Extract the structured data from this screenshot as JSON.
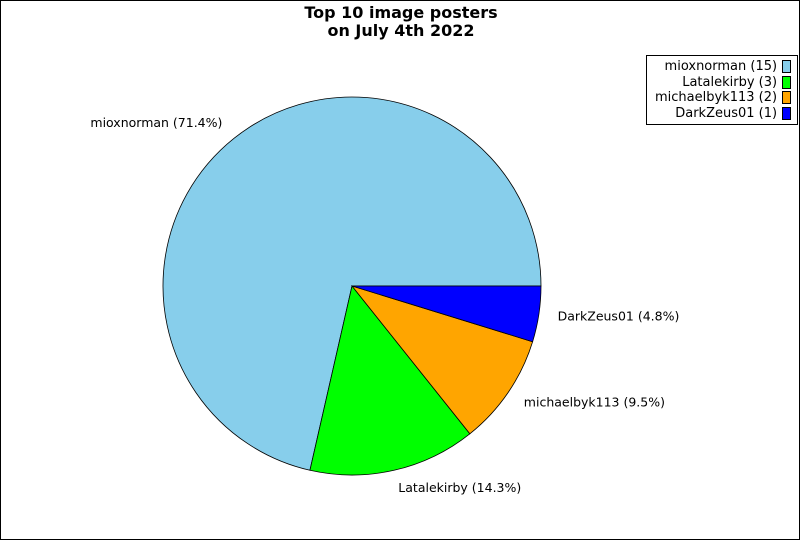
{
  "chart_data": {
    "type": "pie",
    "title": "Top 10 image posters\non July 4th 2022",
    "slices": [
      {
        "label": "mioxnorman",
        "value": 15,
        "percent": "71.4%",
        "color": "#87ceeb"
      },
      {
        "label": "Latalekirby",
        "value": 3,
        "percent": "14.3%",
        "color": "#00ff00"
      },
      {
        "label": "michaelbyk113",
        "value": 2,
        "percent": "9.5%",
        "color": "#ffa500"
      },
      {
        "label": "DarkZeus01",
        "value": 1,
        "percent": "4.8%",
        "color": "#0000ff"
      }
    ],
    "legend_placement": "top-right",
    "start": "3 o'clock",
    "direction": "counterclockwise"
  }
}
